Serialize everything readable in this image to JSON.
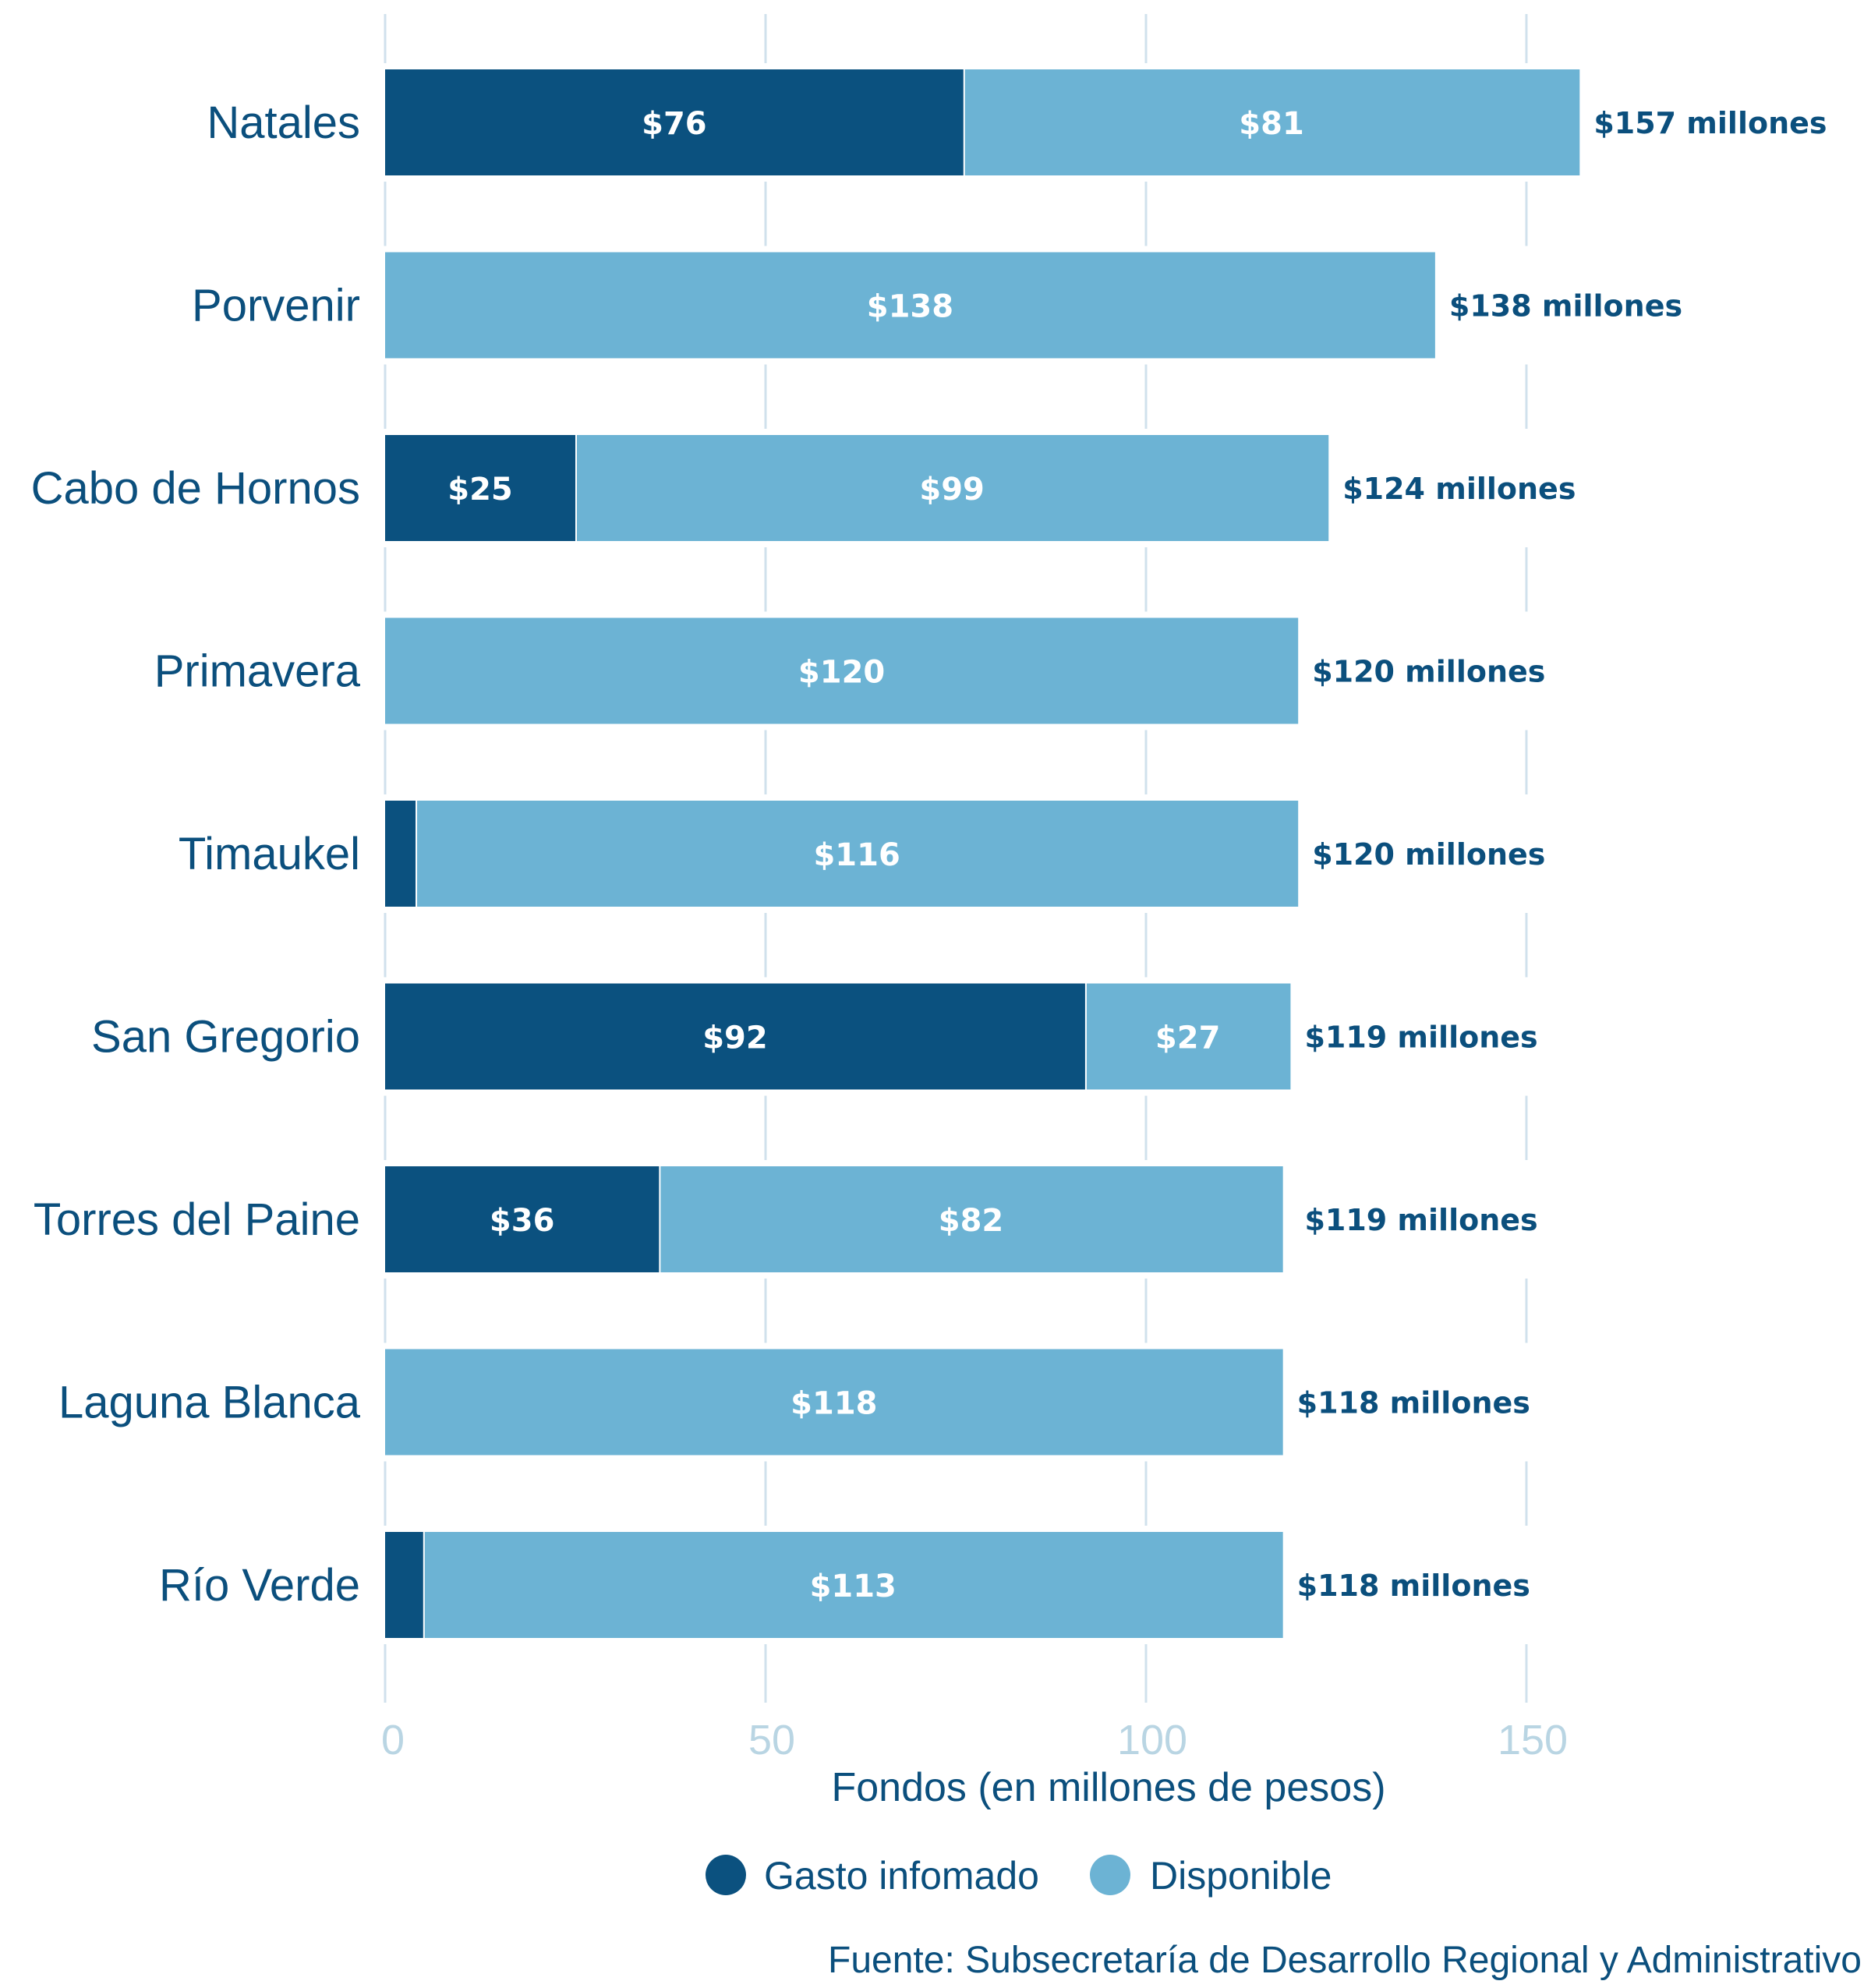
{
  "chart_data": {
    "type": "bar",
    "orientation": "horizontal",
    "stacked": true,
    "categories": [
      "Natales",
      "Porvenir",
      "Cabo de Hornos",
      "Primavera",
      "Timaukel",
      "San Gregorio",
      "Torres del Paine",
      "Laguna Blanca",
      "Río Verde"
    ],
    "series": [
      {
        "name": "Gasto infomado",
        "color": "#0b517f",
        "values": [
          76,
          0,
          25,
          0,
          4,
          92,
          36,
          0,
          5
        ],
        "labels": [
          "$76",
          "",
          "$25",
          "",
          "",
          "$92",
          "$36",
          "",
          ""
        ]
      },
      {
        "name": "Disponible",
        "color": "#6cb3d4",
        "values": [
          81,
          138,
          99,
          120,
          116,
          27,
          82,
          118,
          113
        ],
        "labels": [
          "$81",
          "$138",
          "$99",
          "$120",
          "$116",
          "$27",
          "$82",
          "$118",
          "$113"
        ]
      }
    ],
    "totals": [
      157,
      138,
      124,
      120,
      120,
      119,
      119,
      118,
      118
    ],
    "total_labels": [
      "$157 millones",
      "$138 millones",
      "$124 millones",
      "$120 millones",
      "$120 millones",
      "$119 millones",
      "$119 millones",
      "$118 millones",
      "$118 millones"
    ],
    "xlabel": "Fondos (en millones de pesos)",
    "ylabel": "",
    "xlim": [
      0,
      190
    ],
    "xticks": [
      0,
      50,
      100,
      150
    ],
    "xtick_labels": [
      "0",
      "50",
      "100",
      "150"
    ],
    "grid": true,
    "legend": {
      "position": "bottom-center",
      "entries": [
        "Gasto infomado",
        "Disponible"
      ]
    },
    "source": "Fuente: Subsecretaría de Desarrollo Regional y Administrativo",
    "colors": {
      "text": "#0b4f7d",
      "grid": "#d0e1ec",
      "tick": "#b9d5e3"
    }
  }
}
